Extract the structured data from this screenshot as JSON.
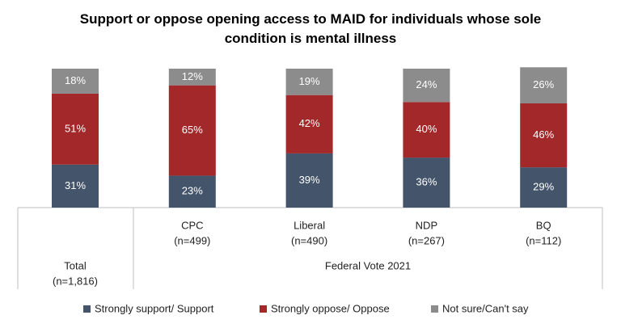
{
  "chart_data": {
    "type": "stacked_bar",
    "title": "Support or oppose opening access to MAID for individuals whose sole condition is mental illness",
    "categories": [
      "Total",
      "CPC",
      "Liberal",
      "NDP",
      "BQ"
    ],
    "category_notes": [
      "(n=1,816)",
      "(n=499)",
      "(n=490)",
      "(n=267)",
      "(n=112)"
    ],
    "group_label": "Federal Vote 2021",
    "series": [
      {
        "name": "Strongly support/ Support",
        "color": "#44546a",
        "values": [
          31,
          23,
          39,
          36,
          29
        ],
        "value_labels": [
          "31%",
          "23%",
          "39%",
          "36%",
          "29%"
        ]
      },
      {
        "name": "Strongly oppose/ Oppose",
        "color": "#a3282a",
        "values": [
          51,
          65,
          42,
          40,
          46
        ],
        "value_labels": [
          "51%",
          "65%",
          "42%",
          "40%",
          "46%"
        ]
      },
      {
        "name": "Not sure/Can't say",
        "color": "#8c8c8c",
        "values": [
          18,
          12,
          19,
          24,
          26
        ],
        "value_labels": [
          "18%",
          "12%",
          "19%",
          "24%",
          "26%"
        ]
      }
    ]
  }
}
